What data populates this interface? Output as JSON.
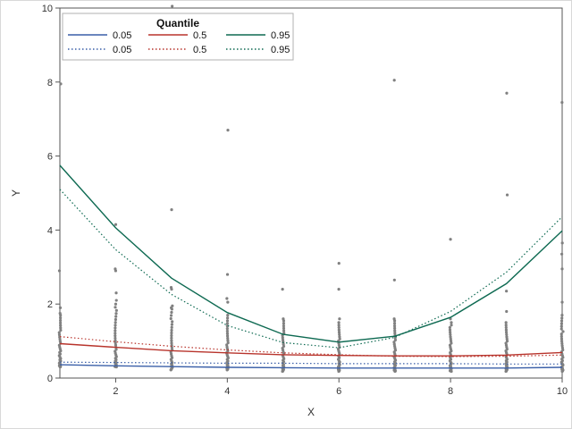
{
  "chart_data": {
    "type": "line",
    "xlabel": "X",
    "ylabel": "Y",
    "xlim": [
      1,
      10
    ],
    "ylim": [
      0,
      10
    ],
    "x_ticks": [
      2,
      4,
      6,
      8,
      10
    ],
    "y_ticks": [
      0,
      2,
      4,
      6,
      8,
      10
    ],
    "grid": false,
    "legend": {
      "title": "Quantile",
      "placement": "top-left, inside plot"
    },
    "x": [
      1,
      2,
      3,
      4,
      5,
      6,
      7,
      8,
      9,
      10
    ],
    "series": [
      {
        "name": "0.05",
        "style": "solid",
        "color": "#3a5fa8",
        "values": [
          0.36,
          0.33,
          0.31,
          0.29,
          0.28,
          0.27,
          0.27,
          0.27,
          0.27,
          0.29
        ]
      },
      {
        "name": "0.5",
        "style": "solid",
        "color": "#b8342c",
        "values": [
          0.93,
          0.83,
          0.74,
          0.68,
          0.63,
          0.61,
          0.6,
          0.6,
          0.62,
          0.69
        ]
      },
      {
        "name": "0.95",
        "style": "solid",
        "color": "#0e6a52",
        "values": [
          5.75,
          4.06,
          2.7,
          1.77,
          1.18,
          0.97,
          1.13,
          1.64,
          2.55,
          3.98
        ]
      },
      {
        "name": "0.05",
        "style": "dotted",
        "color": "#3a5fa8",
        "values": [
          0.43,
          0.42,
          0.41,
          0.4,
          0.4,
          0.39,
          0.39,
          0.39,
          0.38,
          0.38
        ]
      },
      {
        "name": "0.5",
        "style": "dotted",
        "color": "#b8342c",
        "values": [
          1.12,
          0.98,
          0.86,
          0.76,
          0.68,
          0.63,
          0.59,
          0.58,
          0.59,
          0.62
        ]
      },
      {
        "name": "0.95",
        "style": "dotted",
        "color": "#0e6a52",
        "values": [
          5.1,
          3.47,
          2.26,
          1.42,
          0.96,
          0.82,
          1.1,
          1.8,
          2.86,
          4.36
        ]
      }
    ],
    "scatter": {
      "color": "#808080",
      "outliers": [
        [
          1,
          7.95
        ],
        [
          1,
          2.9
        ],
        [
          1,
          1.9
        ],
        [
          1,
          1.75
        ],
        [
          2,
          4.15
        ],
        [
          2,
          2.95
        ],
        [
          2,
          2.9
        ],
        [
          2,
          2.3
        ],
        [
          2,
          2.1
        ],
        [
          3,
          10.05
        ],
        [
          3,
          4.55
        ],
        [
          3,
          2.45
        ],
        [
          3,
          2.4
        ],
        [
          3,
          1.9
        ],
        [
          4,
          9.6
        ],
        [
          4,
          6.7
        ],
        [
          4,
          2.8
        ],
        [
          4,
          2.15
        ],
        [
          4,
          2.05
        ],
        [
          5,
          2.4
        ],
        [
          5,
          1.6
        ],
        [
          6,
          3.1
        ],
        [
          6,
          2.4
        ],
        [
          6,
          1.6
        ],
        [
          7,
          8.05
        ],
        [
          7,
          2.65
        ],
        [
          7,
          1.6
        ],
        [
          8,
          3.75
        ],
        [
          8,
          1.6
        ],
        [
          9,
          7.7
        ],
        [
          9,
          4.95
        ],
        [
          9,
          2.35
        ],
        [
          9,
          1.8
        ],
        [
          10,
          7.45
        ],
        [
          10,
          3.65
        ],
        [
          10,
          3.35
        ],
        [
          10,
          2.95
        ],
        [
          10,
          2.05
        ]
      ],
      "dense_max": [
        1.7,
        2.0,
        1.95,
        1.7,
        1.55,
        1.5,
        1.55,
        1.5,
        1.5,
        1.7
      ],
      "dense_min": [
        0.3,
        0.3,
        0.22,
        0.22,
        0.18,
        0.18,
        0.18,
        0.18,
        0.18,
        0.18
      ]
    }
  }
}
